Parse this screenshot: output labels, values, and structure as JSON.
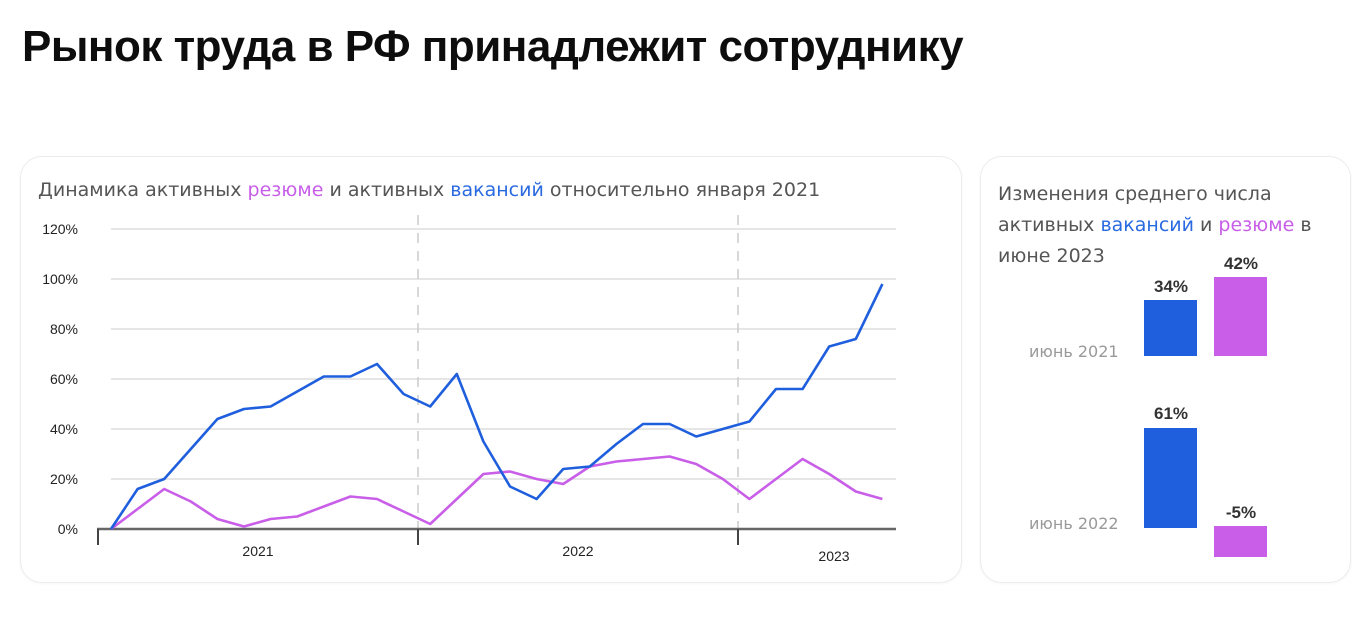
{
  "page": {
    "title": "Рынок труда в РФ принадлежит сотруднику"
  },
  "left_card": {
    "title_parts": {
      "p1": "Динамика активных ",
      "resume": "резюме",
      "p2": " и активных ",
      "vacancies": "вакансий",
      "p3": " относительно января 2021"
    }
  },
  "right_card": {
    "title_parts": {
      "p1": "Изменения среднего числа активных ",
      "vacancies": "вакансий",
      "p2": " и ",
      "resume": "резюме",
      "p3": " в июне 2023"
    },
    "rows": [
      {
        "label": "июнь 2021",
        "vacancies": "34%",
        "resume": "42%"
      },
      {
        "label": "июнь 2022",
        "vacancies": "61%",
        "resume": "-5%"
      }
    ]
  },
  "colors": {
    "vacancies": "#1f5fdd",
    "resume": "#c95ee8",
    "grid": "#dddddd",
    "axis": "#666666"
  },
  "chart_data": [
    {
      "type": "line",
      "title": "Динамика активных резюме и активных вакансий относительно января 2021",
      "xlabel": "",
      "ylabel": "",
      "ylim": [
        0,
        120
      ],
      "yticks": [
        "0%",
        "20%",
        "40%",
        "60%",
        "80%",
        "100%",
        "120%"
      ],
      "xgroups": [
        "2021",
        "2022",
        "2023"
      ],
      "grid": true,
      "x": [
        1,
        2,
        3,
        4,
        5,
        6,
        7,
        8,
        9,
        10,
        11,
        12,
        13,
        14,
        15,
        16,
        17,
        18,
        19,
        20,
        21,
        22,
        23,
        24,
        25,
        26,
        27,
        28,
        29,
        30
      ],
      "series": [
        {
          "name": "вакансий",
          "color": "#1f5fdd",
          "values": [
            0,
            16,
            20,
            32,
            44,
            48,
            49,
            55,
            61,
            61,
            66,
            54,
            49,
            62,
            35,
            17,
            12,
            24,
            25,
            34,
            42,
            42,
            37,
            40,
            43,
            56,
            56,
            73,
            76,
            98
          ]
        },
        {
          "name": "резюме",
          "color": "#c95ee8",
          "values": [
            0,
            8,
            16,
            11,
            4,
            1,
            4,
            5,
            9,
            13,
            12,
            7,
            2,
            12,
            22,
            23,
            20,
            18,
            25,
            27,
            28,
            29,
            26,
            20,
            12,
            20,
            28,
            22,
            15,
            12
          ]
        }
      ]
    },
    {
      "type": "bar",
      "title": "Изменения среднего числа активных вакансий и резюме в июне 2023",
      "categories": [
        "июнь 2021",
        "июнь 2022"
      ],
      "series": [
        {
          "name": "вакансий",
          "color": "#1f5fdd",
          "values": [
            34,
            61
          ]
        },
        {
          "name": "резюме",
          "color": "#c95ee8",
          "values": [
            42,
            -5
          ]
        }
      ]
    }
  ]
}
